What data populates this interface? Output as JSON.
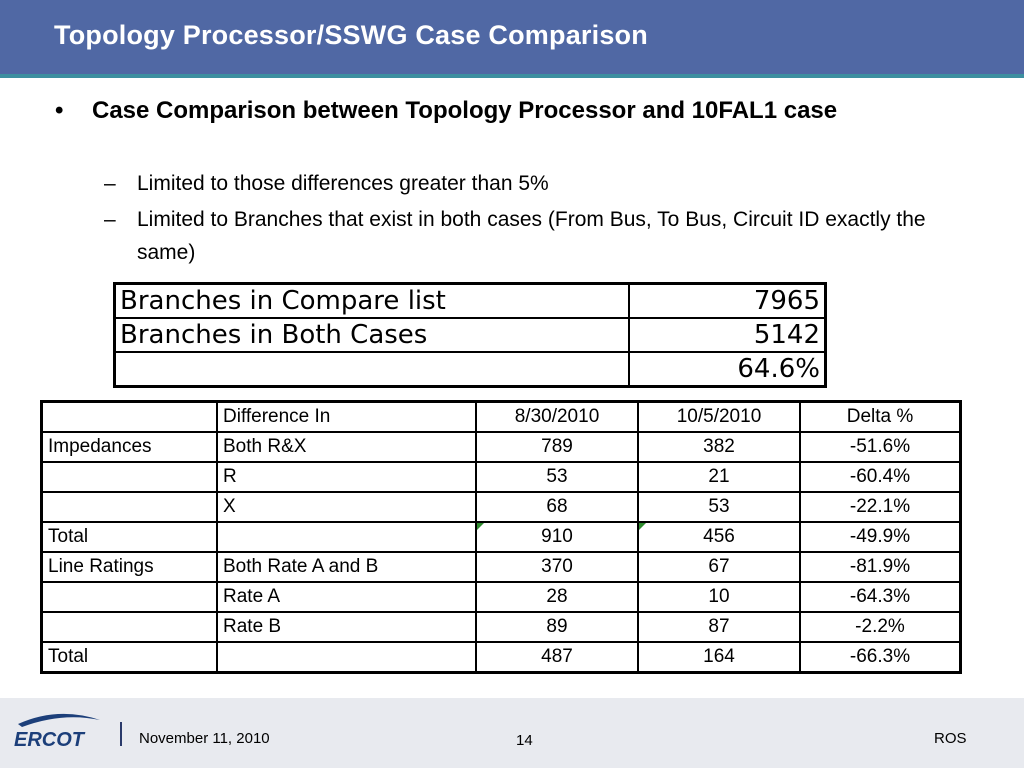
{
  "slide": {
    "title": "Topology Processor/SSWG Case Comparison",
    "bullet": "Case Comparison between Topology Processor and 10FAL1 case",
    "bullet_marker": "•",
    "sub_marker": "–",
    "sub_bullets": [
      "Limited to those differences greater than 5%",
      "Limited to Branches that exist in both cases (From Bus, To Bus, Circuit ID exactly the same)"
    ]
  },
  "summary_table": {
    "rows": [
      {
        "label": "Branches in Compare list",
        "value": "7965"
      },
      {
        "label": "Branches in Both Cases",
        "value": "5142"
      },
      {
        "label": "",
        "value": "64.6%"
      }
    ]
  },
  "comparison_table": {
    "headers": [
      "",
      "Difference In",
      "8/30/2010",
      "10/5/2010",
      "Delta %"
    ],
    "rows": [
      [
        "Impedances",
        "Both R&X",
        "789",
        "382",
        "-51.6%"
      ],
      [
        "",
        "R",
        "53",
        "21",
        "-60.4%"
      ],
      [
        "",
        "X",
        "68",
        "53",
        "-22.1%"
      ],
      [
        "Total",
        "",
        "910",
        "456",
        "-49.9%"
      ],
      [
        "Line Ratings",
        "Both Rate A and B",
        "370",
        "67",
        "-81.9%"
      ],
      [
        "",
        "Rate A",
        "28",
        "10",
        "-64.3%"
      ],
      [
        "",
        "Rate B",
        "89",
        "87",
        "-2.2%"
      ],
      [
        "Total",
        "",
        "487",
        "164",
        "-66.3%"
      ]
    ]
  },
  "footer": {
    "logo_text": "ERCOT",
    "date": "November 11, 2010",
    "page_number": "14",
    "org": "ROS"
  },
  "colors": {
    "title_bar": "#5068a4",
    "title_accent": "#3d8fa0",
    "footer_bg": "#e8eaef",
    "logo_blue": "#1c3f7a"
  }
}
